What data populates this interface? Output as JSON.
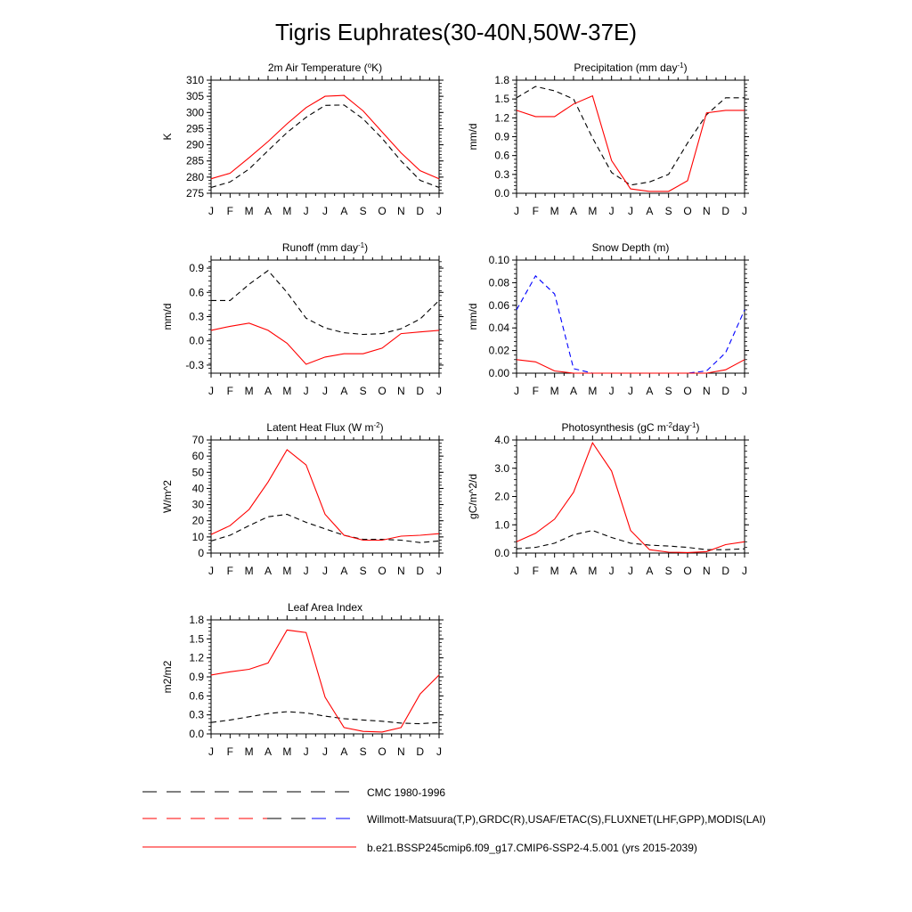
{
  "title": "Tigris Euphrates(30-40N,50W-37E)",
  "colors": {
    "red": "#ff0000",
    "black": "#000000",
    "blue": "#0000ff"
  },
  "legend": [
    {
      "label": "CMC 1980-1996",
      "style": "dash-black"
    },
    {
      "label": "Willmott-Matsuura(T,P),GRDC(R),USAF/ETAC(S),FLUXNET(LHF,GPP),MODIS(LAI)",
      "style": "dash-mixed"
    },
    {
      "label": "b.e21.BSSP245cmip6.f09_g17.CMIP6-SSP2-4.5.001 (yrs 2015-2039)",
      "style": "solid-red"
    }
  ],
  "chart_data": [
    {
      "type": "line",
      "title_main": "2m Air Temperature (",
      "title_sup": "o",
      "title_end": "K)",
      "ylabel": "K",
      "ylim": [
        275,
        310
      ],
      "yticks": [
        275,
        280,
        285,
        290,
        295,
        300,
        305,
        310
      ],
      "ytick_labels": [
        "275",
        "280",
        "285",
        "290",
        "295",
        "300",
        "305",
        "310"
      ],
      "categories": [
        "J",
        "F",
        "M",
        "A",
        "M",
        "J",
        "J",
        "A",
        "S",
        "O",
        "N",
        "D",
        "J"
      ],
      "series": [
        {
          "style": "dash-black",
          "values": [
            276.8,
            278.5,
            282.5,
            288.2,
            293.8,
            298.5,
            302.2,
            302.3,
            298.0,
            292.0,
            285.0,
            279.0,
            276.8
          ]
        },
        {
          "style": "solid-red",
          "values": [
            279.5,
            281.2,
            286.0,
            291.0,
            296.5,
            301.5,
            305.0,
            305.3,
            300.5,
            294.0,
            287.5,
            282.0,
            279.5
          ]
        }
      ]
    },
    {
      "type": "line",
      "title_main": "Precipitation (mm day",
      "title_sup": "-1",
      "title_end": ")",
      "ylabel": "mm/d",
      "ylim": [
        0,
        1.8
      ],
      "yticks": [
        0,
        0.3,
        0.6,
        0.9,
        1.2,
        1.5,
        1.8
      ],
      "ytick_labels": [
        "0.0",
        "0.3",
        "0.6",
        "0.9",
        "1.2",
        "1.5",
        "1.8"
      ],
      "categories": [
        "J",
        "F",
        "M",
        "A",
        "M",
        "J",
        "J",
        "A",
        "S",
        "O",
        "N",
        "D",
        "J"
      ],
      "series": [
        {
          "style": "dash-black",
          "values": [
            1.52,
            1.7,
            1.63,
            1.5,
            0.88,
            0.33,
            0.13,
            0.18,
            0.3,
            0.8,
            1.25,
            1.52,
            1.52
          ]
        },
        {
          "style": "solid-red",
          "values": [
            1.32,
            1.22,
            1.22,
            1.42,
            1.55,
            0.52,
            0.07,
            0.03,
            0.03,
            0.2,
            1.28,
            1.32,
            1.32
          ]
        }
      ]
    },
    {
      "type": "line",
      "title_main": "Runoff (mm day",
      "title_sup": "-1",
      "title_end": ")",
      "ylabel": "mm/d",
      "ylim": [
        -0.4,
        1.0
      ],
      "yticks": [
        -0.3,
        0.0,
        0.3,
        0.6,
        0.9
      ],
      "ytick_labels": [
        "-0.3",
        "0.0",
        "0.3",
        "0.6",
        "0.9"
      ],
      "categories": [
        "J",
        "F",
        "M",
        "A",
        "M",
        "J",
        "J",
        "A",
        "S",
        "O",
        "N",
        "D",
        "J"
      ],
      "series": [
        {
          "style": "dash-black",
          "values": [
            0.5,
            0.5,
            0.7,
            0.87,
            0.6,
            0.28,
            0.16,
            0.1,
            0.08,
            0.09,
            0.15,
            0.27,
            0.5
          ]
        },
        {
          "style": "solid-red",
          "values": [
            0.13,
            0.18,
            0.22,
            0.13,
            -0.03,
            -0.29,
            -0.2,
            -0.16,
            -0.16,
            -0.09,
            0.09,
            0.11,
            0.13
          ]
        }
      ]
    },
    {
      "type": "line",
      "title_main": "Snow Depth (m)",
      "title_sup": "",
      "title_end": "",
      "ylabel": "mm/d",
      "ylim": [
        0,
        0.1
      ],
      "yticks": [
        0,
        0.02,
        0.04,
        0.06,
        0.08,
        0.1
      ],
      "ytick_labels": [
        "0.00",
        "0.02",
        "0.04",
        "0.06",
        "0.08",
        "0.10"
      ],
      "categories": [
        "J",
        "F",
        "M",
        "A",
        "M",
        "J",
        "J",
        "A",
        "S",
        "O",
        "N",
        "D",
        "J"
      ],
      "series": [
        {
          "style": "dash-blue",
          "values": [
            0.056,
            0.086,
            0.07,
            0.004,
            0.0,
            0.0,
            0.0,
            0.0,
            0.0,
            0.0,
            0.002,
            0.018,
            0.056
          ]
        },
        {
          "style": "solid-red",
          "values": [
            0.012,
            0.01,
            0.002,
            0.0,
            0.0,
            0.0,
            0.0,
            0.0,
            0.0,
            0.0,
            0.0,
            0.003,
            0.012
          ]
        }
      ]
    },
    {
      "type": "line",
      "title_main": "Latent Heat Flux (W m",
      "title_sup": "-2",
      "title_end": ")",
      "ylabel": "W/m^2",
      "ylim": [
        0,
        70
      ],
      "yticks": [
        0,
        10,
        20,
        30,
        40,
        50,
        60,
        70
      ],
      "ytick_labels": [
        "0",
        "10",
        "20",
        "30",
        "40",
        "50",
        "60",
        "70"
      ],
      "categories": [
        "J",
        "F",
        "M",
        "A",
        "M",
        "J",
        "J",
        "A",
        "S",
        "O",
        "N",
        "D",
        "J"
      ],
      "series": [
        {
          "style": "dash-black",
          "values": [
            7.5,
            11,
            17,
            22.5,
            24,
            19,
            15,
            11,
            8.5,
            8.5,
            8,
            6.5,
            7.5
          ]
        },
        {
          "style": "solid-red",
          "values": [
            11.5,
            17,
            27,
            44,
            64,
            54.5,
            24,
            11,
            8,
            8,
            10.5,
            11,
            12
          ]
        }
      ]
    },
    {
      "type": "line",
      "title_main": "Photosynthesis (gC m",
      "title_sup": "-2",
      "title_mid": "day",
      "title_sup2": "-1",
      "title_end": ")",
      "ylabel": "gC/m^2/d",
      "ylim": [
        0,
        4.0
      ],
      "yticks": [
        0,
        1.0,
        2.0,
        3.0,
        4.0
      ],
      "ytick_labels": [
        "0.0",
        "1.0",
        "2.0",
        "3.0",
        "4.0"
      ],
      "categories": [
        "J",
        "F",
        "M",
        "A",
        "M",
        "J",
        "J",
        "A",
        "S",
        "O",
        "N",
        "D",
        "J"
      ],
      "series": [
        {
          "style": "dash-black",
          "values": [
            0.15,
            0.2,
            0.35,
            0.65,
            0.8,
            0.55,
            0.35,
            0.28,
            0.25,
            0.2,
            0.12,
            0.12,
            0.15
          ]
        },
        {
          "style": "solid-red",
          "values": [
            0.4,
            0.7,
            1.2,
            2.15,
            3.9,
            2.9,
            0.8,
            0.12,
            0.03,
            0.02,
            0.05,
            0.3,
            0.4
          ]
        }
      ]
    },
    {
      "type": "line",
      "title_main": "Leaf Area Index",
      "title_sup": "",
      "title_end": "",
      "ylabel": "m2/m2",
      "ylim": [
        0,
        1.8
      ],
      "yticks": [
        0,
        0.3,
        0.6,
        0.9,
        1.2,
        1.5,
        1.8
      ],
      "ytick_labels": [
        "0.0",
        "0.3",
        "0.6",
        "0.9",
        "1.2",
        "1.5",
        "1.8"
      ],
      "categories": [
        "J",
        "F",
        "M",
        "A",
        "M",
        "J",
        "J",
        "A",
        "S",
        "O",
        "N",
        "D",
        "J"
      ],
      "series": [
        {
          "style": "dash-black",
          "values": [
            0.18,
            0.22,
            0.27,
            0.32,
            0.35,
            0.33,
            0.28,
            0.24,
            0.22,
            0.2,
            0.17,
            0.16,
            0.18
          ]
        },
        {
          "style": "solid-red",
          "values": [
            0.93,
            0.98,
            1.02,
            1.12,
            1.64,
            1.6,
            0.58,
            0.1,
            0.04,
            0.03,
            0.1,
            0.63,
            0.93
          ]
        }
      ]
    }
  ]
}
